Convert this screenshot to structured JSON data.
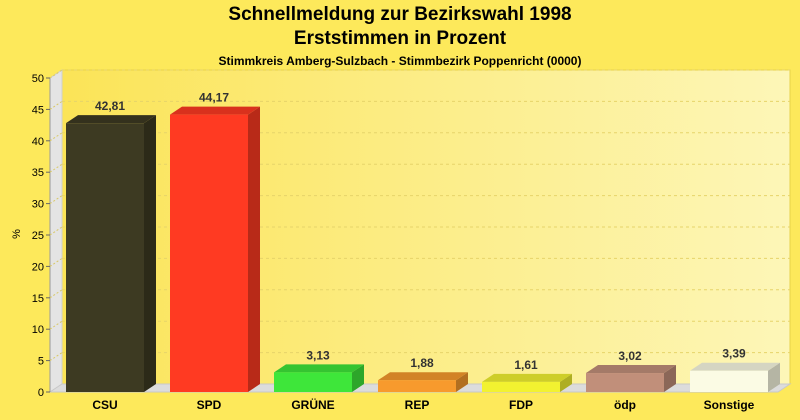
{
  "chart_data": {
    "type": "bar",
    "title": "Schnellmeldung zur Bezirkswahl 1998",
    "subtitle": "Erststimmen in Prozent",
    "caption": "Stimmkreis Amberg-Sulzbach - Stimmbezirk Poppenricht (0000)",
    "ylabel": "%",
    "xlabel": "",
    "ylim": [
      0,
      50
    ],
    "yticks": [
      0,
      5,
      10,
      15,
      20,
      25,
      30,
      35,
      40,
      45,
      50
    ],
    "grid": true,
    "categories": [
      "CSU",
      "SPD",
      "GRÜNE",
      "REP",
      "FDP",
      "ödp",
      "Sonstige"
    ],
    "values": [
      42.81,
      44.17,
      3.13,
      1.88,
      1.61,
      3.02,
      3.39
    ],
    "labels": [
      "42,81",
      "44,17",
      "3,13",
      "1,88",
      "1,61",
      "3,02",
      "3,39"
    ],
    "colors": [
      "#3d3a22",
      "#ff3a22",
      "#3ee63a",
      "#f79a2d",
      "#f2f230",
      "#c18f7a",
      "#fbfbe4"
    ]
  }
}
